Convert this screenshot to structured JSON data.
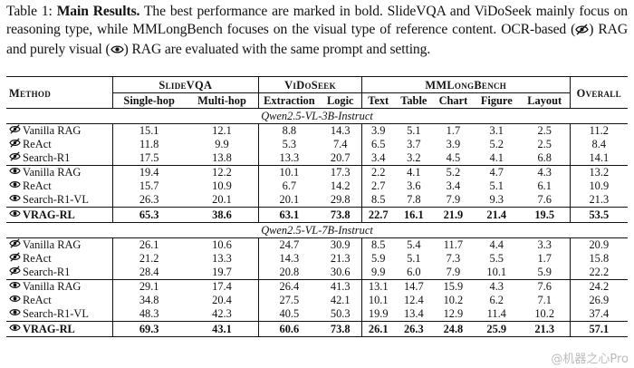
{
  "caption": {
    "label": "Table 1:",
    "bold": "Main Results.",
    "part1": "The best performance are marked in bold. SlideVQA and ViDoSeek mainly focus on reasoning type, while MMLongBench focuses on the visual type of reference content. OCR-based (",
    "part2": ") RAG and purely visual (",
    "part3": ") RAG are evaluated with the same prompt and setting."
  },
  "icons": {
    "ocr": "eye-slash-icon",
    "visual": "eye-icon"
  },
  "header": {
    "method": "Method",
    "groups": [
      "SlideVQA",
      "ViDoSeek",
      "MMLongBench",
      "Overall"
    ],
    "subcols": [
      "Single-hop",
      "Multi-hop",
      "Extraction",
      "Logic",
      "Text",
      "Table",
      "Chart",
      "Figure",
      "Layout"
    ]
  },
  "sections": [
    {
      "title": "Qwen2.5-VL-3B-Instruct",
      "blocks": [
        [
          {
            "icon": "ocr",
            "method": "Vanilla RAG",
            "values": [
              "15.1",
              "12.1",
              "8.8",
              "14.3",
              "3.9",
              "5.1",
              "1.7",
              "3.1",
              "2.5",
              "11.2"
            ]
          },
          {
            "icon": "ocr",
            "method": "ReAct",
            "values": [
              "11.8",
              "9.9",
              "5.3",
              "7.4",
              "6.5",
              "3.7",
              "3.9",
              "5.2",
              "2.5",
              "8.4"
            ]
          },
          {
            "icon": "ocr",
            "method": "Search-R1",
            "values": [
              "17.5",
              "13.8",
              "13.3",
              "20.7",
              "3.4",
              "3.2",
              "4.5",
              "4.1",
              "6.8",
              "14.1"
            ]
          }
        ],
        [
          {
            "icon": "visual",
            "method": "Vanilla RAG",
            "values": [
              "19.4",
              "12.2",
              "10.1",
              "17.3",
              "2.2",
              "4.1",
              "5.2",
              "4.7",
              "4.3",
              "13.2"
            ]
          },
          {
            "icon": "visual",
            "method": "ReAct",
            "values": [
              "15.7",
              "10.9",
              "6.7",
              "14.2",
              "2.7",
              "3.6",
              "3.4",
              "5.1",
              "6.1",
              "10.9"
            ]
          },
          {
            "icon": "visual",
            "method": "Search-R1-VL",
            "values": [
              "26.3",
              "20.1",
              "20.1",
              "29.8",
              "8.5",
              "7.8",
              "7.9",
              "9.3",
              "7.6",
              "21.3"
            ]
          }
        ]
      ],
      "best": {
        "icon": "visual",
        "method": "VRAG-RL",
        "values": [
          "65.3",
          "38.6",
          "63.1",
          "73.8",
          "22.7",
          "16.1",
          "21.9",
          "21.4",
          "19.5",
          "53.5"
        ]
      }
    },
    {
      "title": "Qwen2.5-VL-7B-Instruct",
      "blocks": [
        [
          {
            "icon": "ocr",
            "method": "Vanilla RAG",
            "values": [
              "26.1",
              "10.6",
              "24.7",
              "30.9",
              "8.5",
              "5.4",
              "11.7",
              "4.4",
              "3.3",
              "20.9"
            ]
          },
          {
            "icon": "ocr",
            "method": "ReAct",
            "values": [
              "21.2",
              "13.3",
              "14.3",
              "21.3",
              "5.9",
              "5.1",
              "7.3",
              "5.5",
              "1.7",
              "15.8"
            ]
          },
          {
            "icon": "ocr",
            "method": "Search-R1",
            "values": [
              "28.4",
              "19.7",
              "20.8",
              "30.6",
              "9.9",
              "6.0",
              "7.9",
              "10.1",
              "5.9",
              "22.2"
            ]
          }
        ],
        [
          {
            "icon": "visual",
            "method": "Vanilla RAG",
            "values": [
              "29.1",
              "17.4",
              "26.4",
              "41.3",
              "13.1",
              "14.7",
              "15.9",
              "4.3",
              "7.6",
              "24.2"
            ]
          },
          {
            "icon": "visual",
            "method": "ReAct",
            "values": [
              "34.8",
              "20.4",
              "27.5",
              "42.1",
              "10.1",
              "12.4",
              "10.2",
              "6.2",
              "7.1",
              "26.9"
            ]
          },
          {
            "icon": "visual",
            "method": "Search-R1-VL",
            "values": [
              "48.3",
              "42.3",
              "40.5",
              "50.3",
              "19.9",
              "13.4",
              "12.9",
              "11.4",
              "10.2",
              "37.4"
            ]
          }
        ]
      ],
      "best": {
        "icon": "visual",
        "method": "VRAG-RL",
        "values": [
          "69.3",
          "43.1",
          "60.6",
          "73.8",
          "26.1",
          "26.3",
          "24.8",
          "25.9",
          "21.3",
          "57.1"
        ]
      }
    }
  ],
  "watermark": "@机器之心Pro"
}
